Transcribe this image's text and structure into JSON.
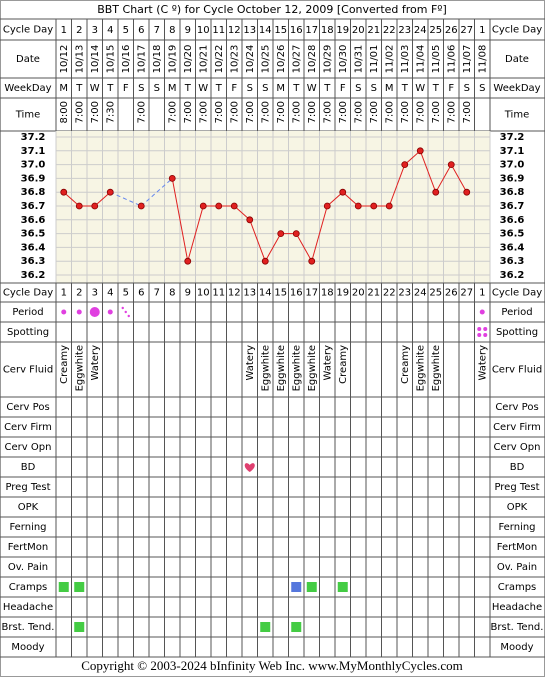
{
  "title": "BBT Chart (C º) for Cycle October 12, 2009  [Converted from Fº]",
  "footer": "Copyright © 2003-2024 bInfinity Web Inc.     www.MyMonthlyCycles.com",
  "chart_data": {
    "type": "line",
    "row_labels": {
      "cycle_day": "Cycle Day",
      "date": "Date",
      "weekday": "WeekDay",
      "time": "Time"
    },
    "categories": [
      1,
      2,
      3,
      4,
      5,
      6,
      7,
      8,
      9,
      10,
      11,
      12,
      13,
      14,
      15,
      16,
      17,
      18,
      19,
      20,
      21,
      22,
      23,
      24,
      25,
      26,
      27,
      1
    ],
    "dates": [
      "10/12",
      "10/13",
      "10/14",
      "10/15",
      "10/16",
      "10/17",
      "10/18",
      "10/19",
      "10/20",
      "10/21",
      "10/22",
      "10/23",
      "10/24",
      "10/25",
      "10/26",
      "10/27",
      "10/28",
      "10/29",
      "10/30",
      "10/31",
      "11/01",
      "11/02",
      "11/03",
      "11/04",
      "11/05",
      "11/06",
      "11/07",
      "11/08"
    ],
    "weekdays": [
      "M",
      "T",
      "W",
      "T",
      "F",
      "S",
      "S",
      "M",
      "T",
      "W",
      "T",
      "F",
      "S",
      "S",
      "M",
      "T",
      "W",
      "T",
      "F",
      "S",
      "S",
      "M",
      "T",
      "W",
      "T",
      "F",
      "S",
      "S"
    ],
    "times": [
      "8:00",
      "7:00",
      "7:00",
      "7:30",
      null,
      "7:00",
      null,
      "7:00",
      "7:00",
      "7:00",
      "7:00",
      "7:00",
      "7:00",
      "7:00",
      "7:00",
      "7:00",
      "7:00",
      "7:00",
      "7:00",
      "7:00",
      "7:00",
      "7:00",
      "7:00",
      "7:00",
      "7:00",
      "7:00",
      "7:00",
      null
    ],
    "values": [
      36.8,
      36.7,
      36.7,
      36.8,
      null,
      36.7,
      null,
      36.9,
      36.3,
      36.7,
      36.7,
      36.7,
      36.6,
      36.3,
      36.5,
      36.5,
      36.3,
      36.7,
      36.8,
      36.7,
      36.7,
      36.7,
      37.0,
      37.1,
      36.8,
      37.0,
      36.8,
      null
    ],
    "color": "#e02020",
    "gap_color": "#6688ee",
    "ylim": [
      36.2,
      37.2
    ],
    "yticks": [
      36.2,
      36.3,
      36.4,
      36.5,
      36.6,
      36.7,
      36.8,
      36.9,
      {
        "value": 37,
        "label": "37.0"
      },
      37.1,
      37.2
    ],
    "grid": true
  },
  "observations": [
    {
      "label": "Period",
      "kind": "symbol",
      "cells": [
        "dot",
        "dot",
        "big-dot",
        "dot",
        "spots",
        null,
        null,
        null,
        null,
        null,
        null,
        null,
        null,
        null,
        null,
        null,
        null,
        null,
        null,
        null,
        null,
        null,
        null,
        null,
        null,
        null,
        null,
        "dot"
      ]
    },
    {
      "label": "Spotting",
      "kind": "symbol",
      "cells": [
        null,
        null,
        null,
        null,
        null,
        null,
        null,
        null,
        null,
        null,
        null,
        null,
        null,
        null,
        null,
        null,
        null,
        null,
        null,
        null,
        null,
        null,
        null,
        null,
        null,
        null,
        null,
        "spots-4"
      ]
    },
    {
      "label": "Cerv Fluid",
      "kind": "text",
      "cells": [
        "Creamy",
        "Eggwhite",
        "Watery",
        null,
        null,
        null,
        null,
        null,
        null,
        null,
        null,
        null,
        "Watery",
        "Eggwhite",
        "Eggwhite",
        "Eggwhite",
        "Eggwhite",
        "Watery",
        "Creamy",
        null,
        null,
        null,
        "Creamy",
        "Eggwhite",
        "Eggwhite",
        null,
        null,
        "Watery"
      ]
    },
    {
      "label": "Cerv Pos",
      "kind": "symbol"
    },
    {
      "label": "Cerv Firm",
      "kind": "symbol"
    },
    {
      "label": "Cerv Opn",
      "kind": "symbol"
    },
    {
      "label": "BD",
      "kind": "symbol",
      "cells": [
        null,
        null,
        null,
        null,
        null,
        null,
        null,
        null,
        null,
        null,
        null,
        null,
        "heart",
        null,
        null,
        null,
        null,
        null,
        null,
        null,
        null,
        null,
        null,
        null,
        null,
        null,
        null,
        null
      ]
    },
    {
      "label": "Preg Test",
      "kind": "symbol"
    },
    {
      "label": "OPK",
      "kind": "symbol"
    },
    {
      "label": "Ferning",
      "kind": "symbol"
    },
    {
      "label": "FertMon",
      "kind": "symbol"
    },
    {
      "label": "Ov. Pain",
      "kind": "symbol"
    },
    {
      "label": "Cramps",
      "kind": "symbol",
      "cells": [
        "#44cc44",
        "#44cc44",
        null,
        null,
        null,
        null,
        null,
        null,
        null,
        null,
        null,
        null,
        null,
        null,
        null,
        "#5577dd",
        "#44cc44",
        null,
        "#44cc44",
        null,
        null,
        null,
        null,
        null,
        null,
        null,
        null,
        null
      ]
    },
    {
      "label": "Headache",
      "kind": "symbol"
    },
    {
      "label": "Brst. Tend.",
      "kind": "symbol",
      "cells": [
        null,
        "#44cc44",
        null,
        null,
        null,
        null,
        null,
        null,
        null,
        null,
        null,
        null,
        null,
        "#44cc44",
        null,
        "#44cc44",
        null,
        null,
        null,
        null,
        null,
        null,
        null,
        null,
        null,
        null,
        null,
        null
      ]
    },
    {
      "label": "Moody",
      "kind": "symbol"
    }
  ]
}
